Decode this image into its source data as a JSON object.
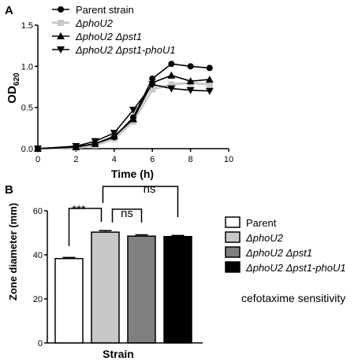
{
  "panel_a": {
    "letter": "A",
    "ylabel_main": "OD",
    "ylabel_sub": "620",
    "xlabel": "Time (h)"
  },
  "panel_b": {
    "letter": "B",
    "ylabel": "Zone diameter (mm)",
    "xlabel": "Strain",
    "annotation": "cefotaxime sensitivity",
    "significance": [
      "***",
      "ns",
      "ns"
    ]
  },
  "colors": {
    "black": "#000000",
    "light_gray": "#c8c8c8",
    "mid_gray": "#808080",
    "white": "#ffffff"
  },
  "chart_data": [
    {
      "type": "line",
      "xlabel": "Time (h)",
      "ylabel": "OD620",
      "xlim": [
        0,
        10
      ],
      "ylim": [
        0,
        1.5
      ],
      "xticks": [
        "0",
        "2",
        "4",
        "6",
        "8",
        "10"
      ],
      "yticks": [
        "0.0",
        "0.5",
        "1.0",
        "1.5"
      ],
      "legend_position": "top-right",
      "series": [
        {
          "name": "Parent strain",
          "marker": "circle",
          "color": "#000000",
          "x": [
            0,
            2,
            3,
            4,
            5,
            6,
            7,
            8,
            9
          ],
          "y": [
            0.0,
            0.02,
            0.06,
            0.14,
            0.38,
            0.85,
            1.03,
            1.0,
            0.98
          ]
        },
        {
          "name": "ΔphoU2",
          "marker": "square",
          "color": "#c8c8c8",
          "x": [
            0,
            2,
            3,
            4,
            5,
            6,
            7,
            8,
            9
          ],
          "y": [
            0.0,
            0.01,
            0.04,
            0.12,
            0.33,
            0.72,
            0.78,
            0.8,
            0.78
          ]
        },
        {
          "name": "ΔphoU2 Δpst1",
          "marker": "triangle-up",
          "color": "#000000",
          "x": [
            0,
            2,
            3,
            4,
            5,
            6,
            7,
            8,
            9
          ],
          "y": [
            0.0,
            0.02,
            0.06,
            0.15,
            0.36,
            0.8,
            0.89,
            0.82,
            0.84
          ]
        },
        {
          "name": "ΔphoU2 Δpst1-phoU1",
          "marker": "triangle-down",
          "color": "#000000",
          "x": [
            0,
            2,
            3,
            4,
            5,
            6,
            7,
            8,
            9
          ],
          "y": [
            0.0,
            0.03,
            0.09,
            0.19,
            0.47,
            0.78,
            0.73,
            0.71,
            0.7
          ]
        }
      ]
    },
    {
      "type": "bar",
      "xlabel": "Strain",
      "ylabel": "Zone diameter (mm)",
      "ylim": [
        0,
        60
      ],
      "yticks": [
        "0",
        "20",
        "40",
        "60"
      ],
      "categories": [
        "Parent",
        "ΔphoU2",
        "ΔphoU2 Δpst1",
        "ΔphoU2 Δpst1-phoU1"
      ],
      "values": [
        38.3,
        50.3,
        48.5,
        48.3
      ],
      "errors": [
        0.5,
        0.7,
        0.6,
        0.5
      ],
      "fills": [
        "#ffffff",
        "#c8c8c8",
        "#808080",
        "#000000"
      ],
      "legend_position": "right"
    }
  ]
}
